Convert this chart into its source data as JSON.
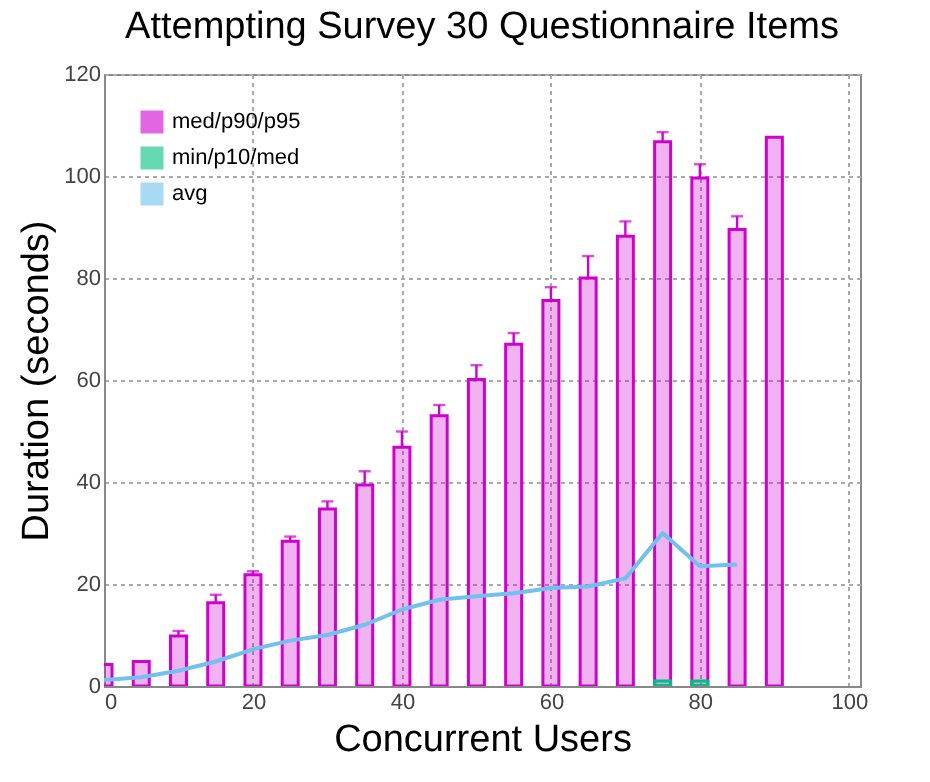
{
  "chart_data": {
    "type": "bar",
    "title": "Attempting Survey 30 Questionnaire Items",
    "xlabel": "Concurrent Users",
    "ylabel": "Duration (seconds)",
    "x": [
      0,
      5,
      10,
      15,
      20,
      25,
      30,
      35,
      40,
      45,
      50,
      55,
      60,
      65,
      70,
      75,
      80,
      85,
      90
    ],
    "series": [
      {
        "name": "med/p90/p95",
        "color": "#d000d0",
        "values": [
          4.2,
          4.8,
          9.8,
          16.3,
          21.8,
          28.4,
          34.7,
          39.4,
          46.8,
          53.0,
          60.1,
          67.0,
          75.6,
          80.0,
          88.2,
          106.7,
          99.6,
          89.5,
          107.6
        ],
        "errors": [
          null,
          null,
          [
            9.8,
            10.8
          ],
          [
            16.3,
            17.9
          ],
          [
            21.8,
            22.5
          ],
          [
            28.4,
            29.3
          ],
          [
            34.7,
            36.2
          ],
          [
            39.4,
            42.1
          ],
          [
            46.8,
            49.9
          ],
          [
            53.0,
            55.1
          ],
          [
            60.1,
            62.9
          ],
          [
            67.0,
            69.2
          ],
          [
            75.6,
            78.2
          ],
          [
            80.0,
            84.3
          ],
          [
            88.2,
            91.1
          ],
          [
            106.7,
            108.6
          ],
          [
            99.6,
            102.3
          ],
          [
            89.5,
            92.1
          ],
          null
        ]
      },
      {
        "name": "min/p10/med",
        "color": "#00c080",
        "values": [
          null,
          null,
          null,
          null,
          null,
          null,
          null,
          null,
          null,
          null,
          null,
          null,
          null,
          null,
          null,
          1,
          1,
          null,
          null
        ]
      },
      {
        "name": "avg",
        "type": "line",
        "color": "#70c0f0",
        "values": [
          1.2,
          1.7,
          3.0,
          4.8,
          7.2,
          8.9,
          10.0,
          12.0,
          15.0,
          16.9,
          17.6,
          18.2,
          19.2,
          19.5,
          21.1,
          30.0,
          23.5,
          23.8,
          null
        ]
      }
    ],
    "xlim": [
      0,
      101.5
    ],
    "xticks": [
      0,
      20,
      40,
      60,
      80,
      100
    ],
    "ylim": [
      0,
      120
    ],
    "yticks": [
      0,
      20,
      40,
      60,
      80,
      100,
      120
    ],
    "grid": true,
    "legend": "top left"
  }
}
